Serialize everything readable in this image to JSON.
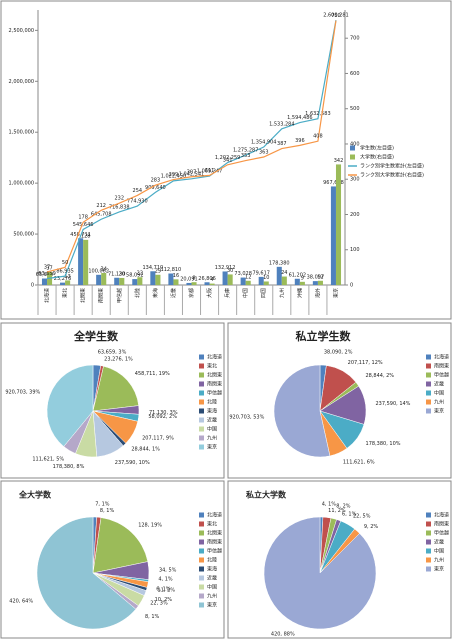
{
  "chart_data": [
    {
      "type": "combo",
      "categories": [
        "北海道",
        "東北",
        "北関東",
        "南関東",
        "甲信越",
        "北陸",
        "東海",
        "近畿",
        "京都",
        "大阪",
        "兵庫",
        "中国",
        "四国",
        "九州",
        "沖縄",
        "海外",
        "東京"
      ],
      "ylim": [
        0,
        2700000
      ],
      "yticks": [
        0,
        {
          "value": 500000,
          "label": "500,000"
        },
        {
          "value": 1000000,
          "label": "1,000,000"
        },
        {
          "value": 1500000,
          "label": "1,500,000"
        },
        {
          "value": 2000000,
          "label": "2,000,000"
        },
        {
          "value": 2500000,
          "label": "2,500,000"
        }
      ],
      "y2lim": [
        0,
        780
      ],
      "y2ticks": [
        0,
        100,
        200,
        300,
        400,
        500,
        600,
        700
      ],
      "legend": "right",
      "series": [
        {
          "name": "学生数(左目盛)",
          "kind": "bar",
          "color": "#4f81bd",
          "values": [
            63659,
            23276,
            458711,
            100062,
            71130,
            58092,
            134710,
            112810,
            20091,
            26806,
            132912,
            73028,
            79617,
            178380,
            61202,
            38097,
            967698
          ],
          "value_labels": [
            "63,659",
            "23,276",
            "458,711",
            "100,062",
            "71,130",
            "58,092",
            "134,710",
            "112,810",
            "20,091",
            "26,806",
            "132,912",
            "73,028",
            "79,617",
            "178,380",
            "61,202",
            "38,097",
            "967,698"
          ]
        },
        {
          "name": "大学数(右目盛)",
          "kind": "bar",
          "axis": "y2",
          "color": "#9bbb59",
          "values": [
            37,
            13,
            128,
            34,
            20,
            22,
            29,
            16,
            8,
            4,
            30,
            12,
            10,
            24,
            9,
            12,
            342
          ]
        },
        {
          "name": "ランク別学生数累計(左目盛)",
          "kind": "line",
          "color": "#4bacc6",
          "values": [
            63659,
            86935,
            545646,
            645708,
            716838,
            774930,
            909640,
            1022450,
            1042541,
            1069347,
            1202259,
            1275287,
            1354904,
            1533284,
            1594486,
            1632583,
            2600281
          ],
          "value_labels": [
            "63,659",
            "86,935",
            "545,646",
            "645,708",
            "716,838",
            "774,930",
            "909,640",
            "1,022,450",
            "1,042,541",
            "1,069,347",
            "1,202,259",
            "1,275,287",
            "1,354,904",
            "1,533,284",
            "1,594,486",
            "1,632,583",
            "2,600,281"
          ]
        },
        {
          "name": "ランク別大学数累計(右目盛)",
          "kind": "line",
          "axis": "y2",
          "color": "#f79646",
          "values": [
            37,
            50,
            178,
            212,
            232,
            254,
            283,
            299,
            307,
            311,
            341,
            353,
            363,
            387,
            396,
            408,
            750
          ]
        }
      ]
    },
    {
      "type": "pie",
      "title": "全学生数",
      "categories": [
        "北海道",
        "東北",
        "北関東",
        "南関東",
        "甲信越",
        "北陸",
        "東海",
        "近畿",
        "中国",
        "九州",
        "東京"
      ],
      "values": [
        63659,
        23276,
        458711,
        71130,
        58092,
        207117,
        28844,
        237590,
        178380,
        111621,
        920703
      ],
      "value_labels": [
        "63,659, 3%",
        "23,276, 1%",
        "458,711, 19%",
        "71,130, 3%",
        "58,092, 2%",
        "207,117, 9%",
        "28,844, 1%",
        "237,590, 10%",
        "178,380, 8%",
        "111,621, 5%",
        "920,703, 39%"
      ],
      "colors": [
        "#4f81bd",
        "#c0504d",
        "#9bbb59",
        "#8064a2",
        "#4bacc6",
        "#f79646",
        "#2c4d75",
        "#b6c8e0",
        "#c9dba4",
        "#b5a8c9",
        "#93cddd"
      ]
    },
    {
      "type": "pie",
      "title": "私立学生数",
      "categories": [
        "北海道",
        "南関東",
        "甲信越",
        "近畿",
        "中国",
        "九州",
        "東京"
      ],
      "values": [
        38090,
        207117,
        28844,
        237590,
        178380,
        111621,
        920703
      ],
      "value_labels": [
        "38,090, 2%",
        "207,117, 12%",
        "28,844, 2%",
        "237,590, 14%",
        "178,380, 10%",
        "111,621, 6%",
        "920,703, 53%"
      ],
      "colors": [
        "#4f81bd",
        "#c0504d",
        "#9bbb59",
        "#8064a2",
        "#4bacc6",
        "#f79646",
        "#9aa8d4"
      ]
    },
    {
      "type": "pie",
      "title": "全大学数",
      "categories": [
        "北海道",
        "東北",
        "北関東",
        "南関東",
        "甲信越",
        "北陸",
        "東海",
        "近畿",
        "中国",
        "九州",
        "東京"
      ],
      "values": [
        7,
        8,
        128,
        34,
        4,
        11,
        6,
        10,
        22,
        8,
        420
      ],
      "value_labels": [
        "7, 1%",
        "8, 1%",
        "128, 19%",
        "34, 5%",
        "4, 1%",
        "11, 2%",
        "6, 1%",
        "10, 2%",
        "22, 3%",
        "8, 1%",
        "420, 64%"
      ],
      "colors": [
        "#4f81bd",
        "#c0504d",
        "#9bbb59",
        "#8064a2",
        "#4bacc6",
        "#f79646",
        "#2c4d75",
        "#b6c8e0",
        "#c9dba4",
        "#b5a8c9",
        "#8fc4d4"
      ]
    },
    {
      "type": "pie",
      "title": "私立大学数",
      "categories": [
        "北海道",
        "南関東",
        "甲信越",
        "近畿",
        "中国",
        "九州",
        "東京"
      ],
      "values": [
        4,
        11,
        8,
        6,
        22,
        9,
        420
      ],
      "value_labels": [
        "4, 1%",
        "11, 2%",
        "8, 2%",
        "6, 1%",
        "22, 5%",
        "9, 2%",
        "420, 88%"
      ],
      "colors": [
        "#4f81bd",
        "#c0504d",
        "#9bbb59",
        "#8064a2",
        "#4bacc6",
        "#f79646",
        "#9aa8d4"
      ]
    }
  ]
}
